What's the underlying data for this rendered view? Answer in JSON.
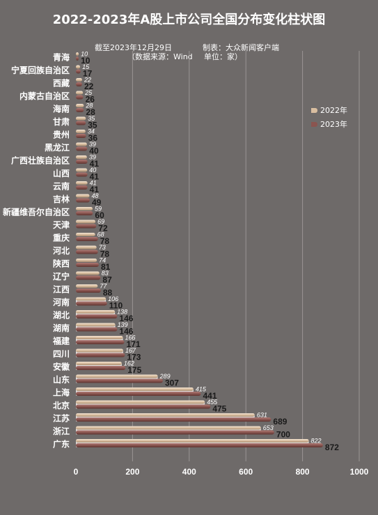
{
  "header": {
    "title": "2022-2023年A股上市公司全国分布变化柱状图",
    "date_note": "截至2023年12月29日",
    "maker_note": "制表：大众新闻客户端",
    "source_note": "（数据来源：Wind",
    "unit_note": "单位：家）"
  },
  "colors": {
    "background": "#6e6a69",
    "series_2022": "#d9bea0",
    "series_2023": "#8a5550",
    "gridline": "#9a9594"
  },
  "chart_data": {
    "type": "bar",
    "orientation": "horizontal",
    "title": "2022-2023年A股上市公司全国分布变化柱状图",
    "xlabel": "",
    "ylabel": "",
    "xlim": [
      0,
      1000
    ],
    "xticks": [
      0,
      200,
      400,
      600,
      800,
      1000
    ],
    "grid": true,
    "legend_position": "right",
    "categories": [
      "青海",
      "宁夏回族自治区",
      "西藏",
      "内蒙古自治区",
      "海南",
      "甘肃",
      "贵州",
      "黑龙江",
      "广西壮族自治区",
      "山西",
      "云南",
      "吉林",
      "新疆维吾尔自治区",
      "天津",
      "重庆",
      "河北",
      "陕西",
      "辽宁",
      "江西",
      "河南",
      "湖北",
      "湖南",
      "福建",
      "四川",
      "安徽",
      "山东",
      "上海",
      "北京",
      "江苏",
      "浙江",
      "广东"
    ],
    "series": [
      {
        "name": "2022年",
        "values": [
          10,
          15,
          22,
          25,
          28,
          35,
          34,
          39,
          39,
          40,
          41,
          48,
          59,
          69,
          68,
          73,
          74,
          83,
          77,
          106,
          138,
          139,
          166,
          167,
          162,
          289,
          415,
          455,
          631,
          653,
          822
        ]
      },
      {
        "name": "2023年",
        "values": [
          10,
          17,
          22,
          26,
          28,
          35,
          36,
          40,
          41,
          41,
          41,
          49,
          60,
          72,
          78,
          78,
          81,
          87,
          88,
          110,
          146,
          146,
          171,
          173,
          175,
          307,
          441,
          475,
          689,
          700,
          872
        ]
      }
    ]
  }
}
